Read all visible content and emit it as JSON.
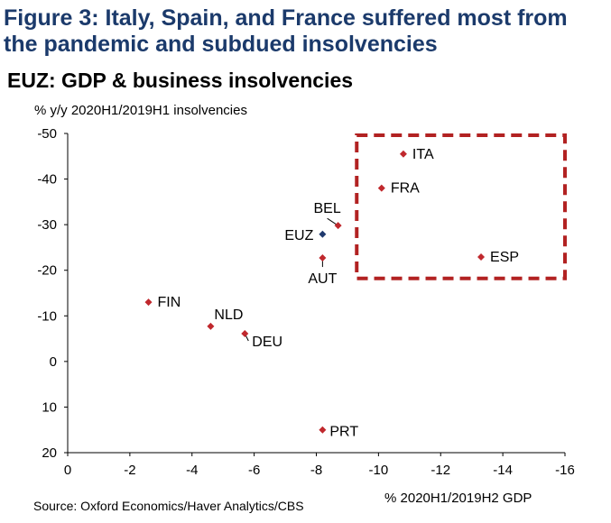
{
  "figure_title": "Figure 3: Italy, Spain, and France suffered most from the pandemic and subdued insolvencies",
  "source": "Source: Oxford Economics/Haver Analytics/CBS",
  "chart_data": {
    "type": "scatter",
    "title": "EUZ: GDP & business insolvencies",
    "xlabel": "% 2020H1/2019H2 GDP",
    "ylabel": "% y/y 2020H1/2019H1 insolvencies",
    "xlim": [
      0,
      -16
    ],
    "ylim": [
      -50,
      20
    ],
    "x_reversed": true,
    "y_reversed": true,
    "xticks": [
      0,
      -2,
      -4,
      -6,
      -8,
      -10,
      -12,
      -14,
      -16
    ],
    "yticks": [
      -50,
      -40,
      -30,
      -20,
      -10,
      0,
      10,
      20
    ],
    "grid": false,
    "colors": {
      "country": "#c0282d",
      "aggregate": "#1f3a6e",
      "highlight_box": "#b22222"
    },
    "highlight_box": {
      "x": [
        -9.3,
        -16
      ],
      "y": [
        -50,
        -18.6
      ],
      "style": "dashed"
    },
    "points": [
      {
        "label": "ITA",
        "x": -10.8,
        "y": -45.5,
        "type": "country"
      },
      {
        "label": "FRA",
        "x": -10.1,
        "y": -38,
        "type": "country"
      },
      {
        "label": "BEL",
        "x": -8.7,
        "y": -29.8,
        "type": "country"
      },
      {
        "label": "EUZ",
        "x": -8.2,
        "y": -27.9,
        "type": "aggregate"
      },
      {
        "label": "AUT",
        "x": -8.2,
        "y": -22.7,
        "type": "country"
      },
      {
        "label": "ESP",
        "x": -13.3,
        "y": -22.9,
        "type": "country"
      },
      {
        "label": "FIN",
        "x": -2.6,
        "y": -13,
        "type": "country"
      },
      {
        "label": "NLD",
        "x": -4.6,
        "y": -7.7,
        "type": "country"
      },
      {
        "label": "DEU",
        "x": -5.7,
        "y": -6.1,
        "type": "country"
      },
      {
        "label": "PRT",
        "x": -8.2,
        "y": 15,
        "type": "country"
      }
    ]
  }
}
